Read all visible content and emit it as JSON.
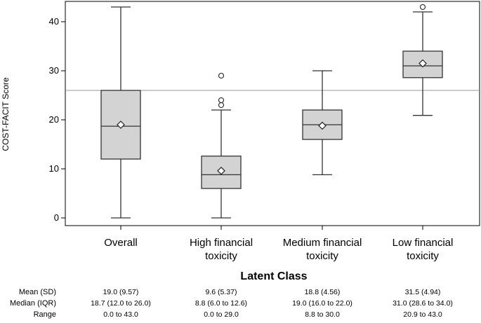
{
  "chart_data": {
    "type": "box",
    "title": "",
    "xlabel": "Latent Class",
    "ylabel": "COST-FACIT Score",
    "ylim": [
      0,
      44
    ],
    "yticks": [
      0,
      10,
      20,
      30,
      40
    ],
    "reference_line": 26,
    "grid": false,
    "categories": [
      "Overall",
      "High financial toxicity",
      "Medium financial toxicity",
      "Low financial toxicity"
    ],
    "boxes": [
      {
        "name": "Overall",
        "whisker_low": 0,
        "q1": 12.0,
        "median": 18.7,
        "q3": 26.0,
        "whisker_high": 43,
        "mean": 19.0,
        "outliers": []
      },
      {
        "name": "High financial toxicity",
        "whisker_low": 0,
        "q1": 6.0,
        "median": 8.8,
        "q3": 12.6,
        "whisker_high": 22,
        "mean": 9.6,
        "outliers": [
          23,
          24,
          29
        ]
      },
      {
        "name": "Medium financial toxicity",
        "whisker_low": 8.8,
        "q1": 16.0,
        "median": 19.0,
        "q3": 22.0,
        "whisker_high": 30,
        "mean": 18.8,
        "outliers": []
      },
      {
        "name": "Low financial toxicity",
        "whisker_low": 20.9,
        "q1": 28.6,
        "median": 31.0,
        "q3": 34.0,
        "whisker_high": 42,
        "mean": 31.5,
        "outliers": [
          43
        ]
      }
    ],
    "stats_table": {
      "rows": [
        "Mean (SD)",
        "Median (IQR)",
        "Range"
      ],
      "values": [
        [
          "19.0 (9.57)",
          "9.6 (5.37)",
          "18.8 (4.56)",
          "31.5 (4.94)"
        ],
        [
          "18.7 (12.0 to 26.0)",
          "8.8 (6.0 to 12.6)",
          "19.0 (16.0 to 22.0)",
          "31.0 (28.6 to 34.0)"
        ],
        [
          "0.0 to 43.0",
          "0.0 to 29.0",
          "8.8 to 30.0",
          "20.9 to 43.0"
        ]
      ]
    }
  },
  "labels": {
    "ylabel": "COST-FACIT Score",
    "xlabel": "Latent Class",
    "yticks": [
      "0",
      "10",
      "20",
      "30",
      "40"
    ],
    "cat1": [
      "Overall",
      ""
    ],
    "cat2": [
      "High financial",
      "toxicity"
    ],
    "cat3": [
      "Medium financial",
      "toxicity"
    ],
    "cat4": [
      "Low financial",
      "toxicity"
    ],
    "rows": [
      "Mean (SD)",
      "Median (IQR)",
      "Range"
    ]
  },
  "colors": {
    "box_fill": "#d3d3d3",
    "line": "#333333",
    "reference_line": "#999999"
  }
}
